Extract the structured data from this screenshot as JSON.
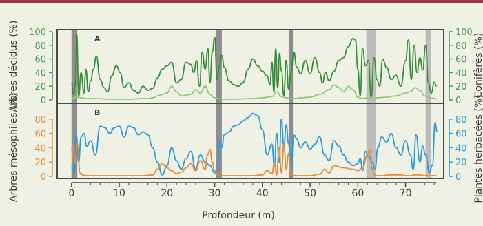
{
  "colors": {
    "top_rule": "#9b3a46",
    "background": "#eef1e3",
    "frame": "#4a4a4a",
    "gray_band": "#8e8e8e",
    "gray_band_light": "#bcbcbc",
    "deciduous": "#3a8d3a",
    "conifer": "#8cc97c",
    "green_axis": "#4a9a4a",
    "orange_axis": "#e58a3a",
    "mesophile": "#e58a3a",
    "herbaceous": "#2f9bd4",
    "blue_axis": "#2f9bd4",
    "bottom_axis": "#4a4a4a"
  },
  "chart_data": [
    {
      "type": "line",
      "panel_label": "A",
      "xlabel": "Profondeur (m)",
      "ylabel_left": "Arbres décidus  (%)",
      "ylabel_right": "Conifères (%)",
      "yticks_left": [
        0,
        20,
        40,
        60,
        80,
        100
      ],
      "yticks_right": [
        0,
        20,
        40,
        60,
        80,
        100
      ],
      "ylim": [
        0,
        100
      ],
      "series": [
        {
          "name": "Arbres décidus",
          "axis": "left",
          "x": [
            0,
            0.4,
            0.8,
            1.1,
            1.5,
            2.0,
            2.6,
            3.0,
            3.5,
            4.0,
            4.6,
            5.2,
            6.0,
            6.8,
            7.6,
            8.4,
            9.4,
            10.2,
            11.0,
            12.0,
            13.0,
            14.0,
            15.0,
            16.0,
            17.0,
            18.0,
            19.0,
            20.0,
            21.0,
            22.0,
            23.0,
            24.0,
            25.0,
            25.6,
            26.2,
            26.8,
            27.4,
            28.0,
            28.6,
            29.0,
            29.5,
            30.0,
            30.5,
            31.0,
            31.5,
            32.0,
            33.0,
            34.0,
            35.0,
            36.0,
            37.0,
            38.0,
            39.0,
            40.0,
            41.0,
            41.6,
            42.0,
            42.4,
            42.8,
            43.2,
            43.6,
            44.0,
            44.5,
            45.0,
            45.5,
            46.0,
            46.6,
            47.2,
            48.0,
            49.0,
            50.0,
            51.0,
            52.0,
            52.6,
            53.2,
            54.0,
            55.0,
            56.0,
            57.0,
            58.0,
            59.0,
            59.5,
            60.0,
            60.5,
            61.0,
            61.6,
            62.2,
            62.8,
            63.4,
            64.0,
            64.6,
            65.2,
            66.0,
            67.0,
            68.0,
            69.0,
            70.0,
            70.6,
            71.2,
            71.8,
            72.4,
            73.0,
            73.6,
            74.2,
            74.8,
            75.4,
            76.0,
            76.5
          ],
          "y": [
            26,
            8,
            22,
            95,
            5,
            40,
            10,
            45,
            12,
            28,
            45,
            64,
            30,
            18,
            12,
            35,
            50,
            40,
            18,
            25,
            14,
            10,
            20,
            14,
            17,
            32,
            45,
            50,
            55,
            25,
            30,
            55,
            52,
            40,
            58,
            20,
            70,
            45,
            75,
            25,
            70,
            92,
            30,
            50,
            65,
            48,
            28,
            22,
            20,
            26,
            45,
            60,
            50,
            42,
            35,
            22,
            55,
            12,
            75,
            18,
            68,
            42,
            6,
            58,
            16,
            40,
            70,
            48,
            38,
            58,
            38,
            62,
            40,
            25,
            40,
            28,
            42,
            58,
            62,
            78,
            90,
            88,
            45,
            6,
            75,
            50,
            58,
            4,
            62,
            30,
            20,
            60,
            48,
            30,
            36,
            20,
            58,
            88,
            30,
            80,
            40,
            62,
            44,
            80,
            25,
            10,
            26,
            20
          ],
          "color": "#3a8d3a"
        },
        {
          "name": "Conifères",
          "axis": "right",
          "x": [
            0,
            1.0,
            2.0,
            3.0,
            5.0,
            8.0,
            12.0,
            15.0,
            16.0,
            17.0,
            18.0,
            19.0,
            20.0,
            21.0,
            22.0,
            23.0,
            25.0,
            26.0,
            27.0,
            28.0,
            29.0,
            30.0,
            31.0,
            32.0,
            34.0,
            38.0,
            40.0,
            42.0,
            43.0,
            44.0,
            45.0,
            46.0,
            47.0,
            48.0,
            50.0,
            52.0,
            54.0,
            55.0,
            56.0,
            57.0,
            58.0,
            59.0,
            60.0,
            61.0,
            62.0,
            63.0,
            64.0,
            66.0,
            68.0,
            70.0,
            71.0,
            72.0,
            73.0,
            74.0,
            75.0,
            76.0,
            76.5
          ],
          "y": [
            2,
            4,
            3,
            2,
            2,
            1,
            1,
            2,
            2,
            3,
            6,
            8,
            10,
            20,
            12,
            6,
            8,
            15,
            10,
            20,
            8,
            3,
            2,
            1,
            1,
            2,
            3,
            5,
            12,
            5,
            3,
            2,
            2,
            3,
            4,
            8,
            15,
            22,
            18,
            12,
            20,
            15,
            4,
            2,
            3,
            2,
            3,
            4,
            6,
            10,
            12,
            18,
            14,
            6,
            3,
            2,
            1
          ],
          "color": "#8cc97c"
        }
      ]
    },
    {
      "type": "line",
      "panel_label": "B",
      "xlabel": "Profondeur (m)",
      "ylabel_left": "Arbres mésophiles (%)",
      "ylabel_right": "Plantes herbacées (%)",
      "yticks_left": [
        0,
        20,
        40,
        60,
        80
      ],
      "yticks_right": [
        0,
        20,
        40,
        60,
        80
      ],
      "ylim": [
        0,
        100
      ],
      "xticks": [
        0,
        10,
        20,
        30,
        40,
        50,
        60,
        70
      ],
      "xlim": [
        -3,
        78
      ],
      "series": [
        {
          "name": "Plantes herbacées",
          "axis": "right",
          "x": [
            0,
            0.5,
            1.0,
            1.5,
            2.0,
            2.6,
            3.2,
            4.0,
            5.0,
            6.0,
            7.0,
            8.0,
            9.0,
            10.0,
            11.0,
            12.0,
            13.0,
            14.0,
            15.0,
            16.0,
            17.0,
            18.0,
            19.0,
            20.0,
            21.0,
            22.0,
            23.0,
            24.0,
            25.0,
            26.0,
            27.0,
            28.0,
            29.0,
            30.0,
            30.5,
            31.0,
            31.5,
            32.0,
            33.0,
            34.0,
            35.0,
            36.0,
            37.0,
            38.0,
            39.0,
            40.0,
            41.0,
            42.0,
            42.5,
            43.0,
            43.5,
            44.0,
            44.5,
            45.0,
            45.5,
            46.0,
            46.6,
            47.2,
            48.0,
            49.0,
            50.0,
            51.0,
            52.0,
            53.0,
            54.0,
            55.0,
            56.0,
            57.0,
            58.0,
            59.0,
            60.0,
            60.5,
            61.0,
            61.6,
            62.2,
            63.0,
            63.6,
            64.2,
            65.0,
            66.0,
            67.0,
            68.0,
            69.0,
            70.0,
            71.0,
            71.6,
            72.2,
            73.0,
            73.6,
            74.2,
            75.0,
            75.6,
            76.2,
            76.6
          ],
          "y": [
            40,
            5,
            58,
            20,
            55,
            60,
            42,
            50,
            30,
            70,
            68,
            60,
            68,
            70,
            55,
            70,
            68,
            58,
            62,
            58,
            40,
            20,
            2,
            15,
            40,
            22,
            10,
            25,
            35,
            10,
            30,
            20,
            15,
            5,
            2,
            50,
            40,
            58,
            62,
            70,
            72,
            78,
            82,
            88,
            85,
            65,
            30,
            45,
            15,
            60,
            20,
            80,
            40,
            72,
            45,
            10,
            58,
            52,
            40,
            48,
            38,
            45,
            55,
            30,
            22,
            50,
            42,
            30,
            20,
            15,
            18,
            25,
            8,
            35,
            28,
            20,
            10,
            40,
            55,
            48,
            60,
            40,
            30,
            50,
            30,
            10,
            58,
            20,
            42,
            30,
            5,
            15,
            75,
            62
          ],
          "color": "#2f9bd4"
        },
        {
          "name": "Arbres mésophiles",
          "axis": "left",
          "x": [
            0,
            0.4,
            0.8,
            1.2,
            1.8,
            2.4,
            3.0,
            5.0,
            10.0,
            15.0,
            17.0,
            18.0,
            19.0,
            20.0,
            21.0,
            22.0,
            23.0,
            24.0,
            25.0,
            26.0,
            27.0,
            28.0,
            28.5,
            29.0,
            29.5,
            30.0,
            30.5,
            31.0,
            32.0,
            35.0,
            38.0,
            40.0,
            41.0,
            42.0,
            42.5,
            43.0,
            43.5,
            44.0,
            44.5,
            45.0,
            45.5,
            46.0,
            47.0,
            48.0,
            50.0,
            52.0,
            53.0,
            54.0,
            55.0,
            57.0,
            59.0,
            60.0,
            61.0,
            62.0,
            62.5,
            63.0,
            63.5,
            64.0,
            65.0,
            67.0,
            69.0,
            70.0,
            71.0,
            72.0,
            73.0,
            74.0,
            75.0,
            76.0,
            76.5
          ],
          "y": [
            10,
            44,
            20,
            46,
            5,
            2,
            1,
            1,
            1,
            1,
            2,
            10,
            18,
            12,
            8,
            4,
            6,
            12,
            18,
            8,
            22,
            10,
            30,
            38,
            20,
            8,
            2,
            1,
            1,
            1,
            1,
            2,
            8,
            4,
            18,
            2,
            40,
            5,
            45,
            10,
            32,
            2,
            1,
            1,
            1,
            3,
            10,
            5,
            15,
            12,
            10,
            8,
            12,
            30,
            38,
            10,
            2,
            1,
            1,
            2,
            2,
            1,
            1,
            2,
            2,
            1,
            1,
            1,
            1
          ],
          "color": "#e58a3a"
        }
      ]
    }
  ],
  "gray_bands": [
    {
      "x0": 0.0,
      "x1": 1.2,
      "shade": "dark"
    },
    {
      "x0": 30.3,
      "x1": 31.5,
      "shade": "dark"
    },
    {
      "x0": 45.6,
      "x1": 46.4,
      "shade": "dark"
    },
    {
      "x0": 61.8,
      "x1": 63.8,
      "shade": "light"
    },
    {
      "x0": 74.2,
      "x1": 75.4,
      "shade": "light"
    }
  ]
}
